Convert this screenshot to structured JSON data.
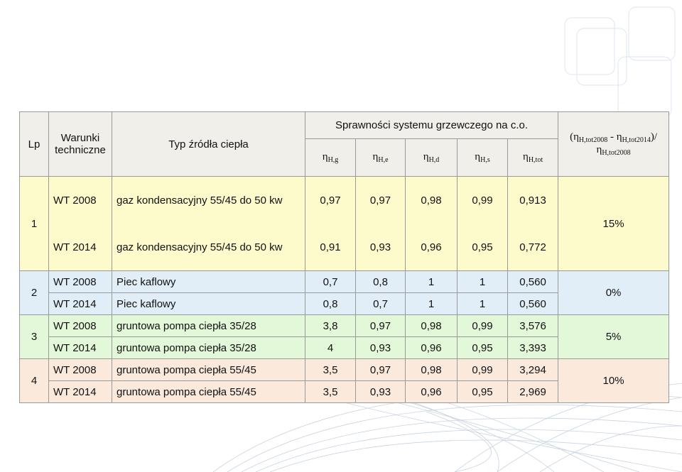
{
  "header": {
    "lp": "Lp",
    "conditions": "Warunki techniczne",
    "source": "Typ źródła ciepła",
    "efficiency_title": "Sprawności systemu grzewczego na c.o.",
    "eta": "η",
    "cols": [
      "H,g",
      "H,e",
      "H,d",
      "H,s",
      "H,tot"
    ],
    "ratio": {
      "open": "(",
      "a_sub": "H,tot2008",
      "minus": " - ",
      "b_sub": "H,tot2014",
      "close": ")/",
      "den_sub": "H,tot2008"
    }
  },
  "groups": [
    {
      "lp": "1",
      "saving": "15%",
      "rows": [
        {
          "conditions": "WT 2008",
          "source": "gaz kondensacyjny 55/45 do 50 kw",
          "values": [
            "0,97",
            "0,97",
            "0,98",
            "0,99",
            "0,913"
          ]
        },
        {
          "conditions": "WT 2014",
          "source": "gaz kondensacyjny 55/45 do 50 kw",
          "values": [
            "0,91",
            "0,93",
            "0,96",
            "0,95",
            "0,772"
          ]
        }
      ]
    },
    {
      "lp": "2",
      "saving": "0%",
      "rows": [
        {
          "conditions": "WT 2008",
          "source": "Piec kaflowy",
          "values": [
            "0,7",
            "0,8",
            "1",
            "1",
            "0,560"
          ]
        },
        {
          "conditions": "WT 2014",
          "source": "Piec kaflowy",
          "values": [
            "0,8",
            "0,7",
            "1",
            "1",
            "0,560"
          ]
        }
      ]
    },
    {
      "lp": "3",
      "saving": "5%",
      "rows": [
        {
          "conditions": "WT 2008",
          "source": "gruntowa pompa ciepła 35/28",
          "values": [
            "3,8",
            "0,97",
            "0,98",
            "0,99",
            "3,576"
          ]
        },
        {
          "conditions": "WT 2014",
          "source": "gruntowa pompa ciepła 35/28",
          "values": [
            "4",
            "0,93",
            "0,96",
            "0,95",
            "3,393"
          ]
        }
      ]
    },
    {
      "lp": "4",
      "saving": "10%",
      "rows": [
        {
          "conditions": "WT 2008",
          "source": "gruntowa pompa ciepła 55/45",
          "values": [
            "3,5",
            "0,97",
            "0,98",
            "0,99",
            "3,294"
          ]
        },
        {
          "conditions": "WT 2014",
          "source": "gruntowa pompa ciepła 55/45",
          "values": [
            "3,5",
            "0,93",
            "0,96",
            "0,95",
            "2,969"
          ]
        }
      ]
    }
  ],
  "colors": {
    "group1": "#fdfbcc",
    "group2": "#e2eef7",
    "group3": "#e3f8d8",
    "group4": "#fbe9dc",
    "header": "#f1efe9"
  }
}
